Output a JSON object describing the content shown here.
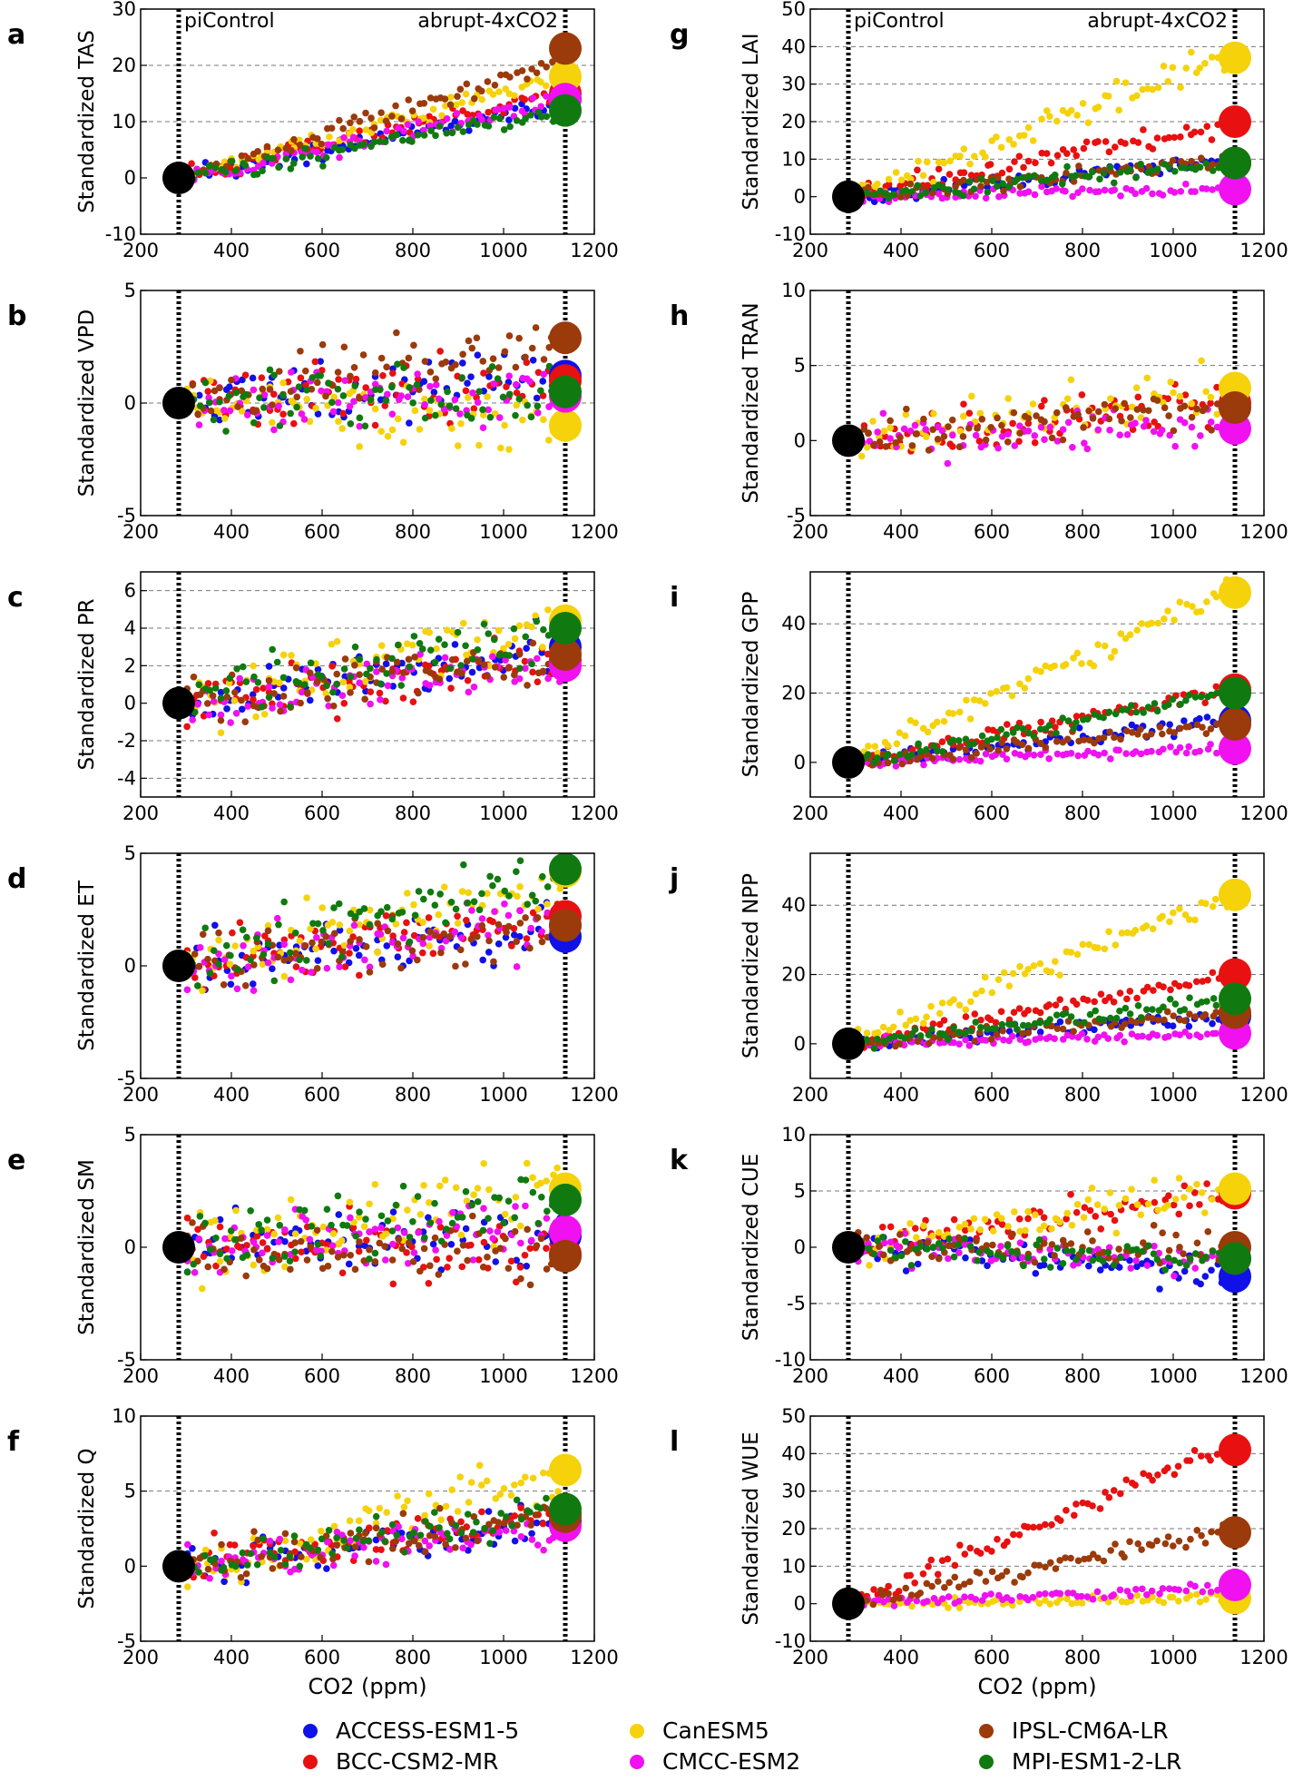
{
  "figure": {
    "xlabel": "CO2 (ppm)",
    "annotation_left": "piControl",
    "annotation_right": "abrupt-4xCO2",
    "colors": {
      "ACCESS-ESM1-5": "#1010e8",
      "BCC-CSM2-MR": "#e81010",
      "CanESM5": "#f5d20a",
      "CMCC-ESM2": "#f010f0",
      "IPSL-CM6A-LR": "#9b3a0a",
      "MPI-ESM1-2-LR": "#107a10",
      "piControl": "#000000"
    }
  },
  "legend": {
    "items": [
      {
        "name": "ACCESS-ESM1-5",
        "color": "#1010e8"
      },
      {
        "name": "CanESM5",
        "color": "#f5d20a"
      },
      {
        "name": "IPSL-CM6A-LR",
        "color": "#9b3a0a"
      },
      {
        "name": "BCC-CSM2-MR",
        "color": "#e81010"
      },
      {
        "name": "CMCC-ESM2",
        "color": "#f010f0"
      },
      {
        "name": "MPI-ESM1-2-LR",
        "color": "#107a10"
      }
    ]
  },
  "chart_data": [
    {
      "panel": "a",
      "type": "scatter",
      "ylabel": "Standardized TAS",
      "xlim": [
        200,
        1200
      ],
      "ylim": [
        -10,
        30
      ],
      "yticks": [
        -10,
        0,
        10,
        20,
        30
      ],
      "xticks": [
        200,
        400,
        600,
        800,
        1000,
        1200
      ],
      "grid_y": [
        10,
        20
      ],
      "endpoints_at_284": [
        {
          "model": "piControl",
          "value": 0
        }
      ],
      "series": [
        {
          "name": "ACCESS-ESM1-5",
          "trend_end": 13,
          "noise": 1.2,
          "end_value": 14
        },
        {
          "name": "BCC-CSM2-MR",
          "trend_end": 15,
          "noise": 1.2,
          "end_value": 15
        },
        {
          "name": "CanESM5",
          "trend_end": 18,
          "noise": 1.2,
          "end_value": 18
        },
        {
          "name": "CMCC-ESM2",
          "trend_end": 14,
          "noise": 1.2,
          "end_value": 14
        },
        {
          "name": "IPSL-CM6A-LR",
          "trend_end": 21,
          "noise": 1.2,
          "end_value": 23
        },
        {
          "name": "MPI-ESM1-2-LR",
          "trend_end": 11.5,
          "noise": 1.2,
          "end_value": 12
        }
      ]
    },
    {
      "panel": "b",
      "type": "scatter",
      "ylabel": "Standardized VPD",
      "xlim": [
        200,
        1200
      ],
      "ylim": [
        -5,
        5
      ],
      "yticks": [
        -5,
        0,
        5
      ],
      "xticks": [
        200,
        400,
        600,
        800,
        1000,
        1200
      ],
      "grid_y": [
        0
      ],
      "endpoints_at_284": [
        {
          "model": "piControl",
          "value": 0
        }
      ],
      "series": [
        {
          "name": "ACCESS-ESM1-5",
          "trend_end": 1.2,
          "noise": 0.9,
          "end_value": 1.2
        },
        {
          "name": "BCC-CSM2-MR",
          "trend_end": 1.0,
          "noise": 0.9,
          "end_value": 1.0
        },
        {
          "name": "CanESM5",
          "trend_end": -1.0,
          "noise": 1.0,
          "end_value": -1.0
        },
        {
          "name": "CMCC-ESM2",
          "trend_end": 0.3,
          "noise": 0.9,
          "end_value": 0.3
        },
        {
          "name": "IPSL-CM6A-LR",
          "trend_end": 2.9,
          "noise": 1.0,
          "end_value": 2.9
        },
        {
          "name": "MPI-ESM1-2-LR",
          "trend_end": 0.5,
          "noise": 0.9,
          "end_value": 0.5
        }
      ]
    },
    {
      "panel": "c",
      "type": "scatter",
      "ylabel": "Standardized PR",
      "xlim": [
        200,
        1200
      ],
      "ylim": [
        -5,
        7
      ],
      "yticks": [
        -4,
        -2,
        0,
        2,
        4,
        6
      ],
      "xticks": [
        200,
        400,
        600,
        800,
        1000,
        1200
      ],
      "grid_y": [
        -4,
        -2,
        2,
        4,
        6
      ],
      "endpoints_at_284": [
        {
          "model": "piControl",
          "value": 0
        }
      ],
      "series": [
        {
          "name": "ACCESS-ESM1-5",
          "trend_end": 3.0,
          "noise": 1.0,
          "end_value": 3.0
        },
        {
          "name": "BCC-CSM2-MR",
          "trend_end": 2.3,
          "noise": 1.0,
          "end_value": 2.3
        },
        {
          "name": "CanESM5",
          "trend_end": 4.5,
          "noise": 1.1,
          "end_value": 4.4
        },
        {
          "name": "CMCC-ESM2",
          "trend_end": 2.0,
          "noise": 1.0,
          "end_value": 2.0
        },
        {
          "name": "IPSL-CM6A-LR",
          "trend_end": 2.6,
          "noise": 1.0,
          "end_value": 2.6
        },
        {
          "name": "MPI-ESM1-2-LR",
          "trend_end": 4.0,
          "noise": 1.0,
          "end_value": 4.0
        }
      ]
    },
    {
      "panel": "d",
      "type": "scatter",
      "ylabel": "Standardized ET",
      "xlim": [
        200,
        1200
      ],
      "ylim": [
        -5,
        5
      ],
      "yticks": [
        -5,
        0,
        5
      ],
      "xticks": [
        200,
        400,
        600,
        800,
        1000,
        1200
      ],
      "grid_y": [],
      "endpoints_at_284": [
        {
          "model": "piControl",
          "value": 0
        }
      ],
      "series": [
        {
          "name": "ACCESS-ESM1-5",
          "trend_end": 1.5,
          "noise": 0.9,
          "end_value": 1.3
        },
        {
          "name": "BCC-CSM2-MR",
          "trend_end": 2.0,
          "noise": 0.9,
          "end_value": 2.2
        },
        {
          "name": "CanESM5",
          "trend_end": 3.8,
          "noise": 1.0,
          "end_value": 4.2
        },
        {
          "name": "CMCC-ESM2",
          "trend_end": 1.8,
          "noise": 0.9,
          "end_value": 1.8
        },
        {
          "name": "IPSL-CM6A-LR",
          "trend_end": 1.8,
          "noise": 0.9,
          "end_value": 1.8
        },
        {
          "name": "MPI-ESM1-2-LR",
          "trend_end": 4.0,
          "noise": 1.0,
          "end_value": 4.3
        }
      ]
    },
    {
      "panel": "e",
      "type": "scatter",
      "ylabel": "Standardized SM",
      "xlim": [
        200,
        1200
      ],
      "ylim": [
        -5,
        5
      ],
      "yticks": [
        -5,
        0,
        5
      ],
      "xticks": [
        200,
        400,
        600,
        800,
        1000,
        1200
      ],
      "grid_y": [],
      "endpoints_at_284": [
        {
          "model": "piControl",
          "value": 0
        }
      ],
      "series": [
        {
          "name": "ACCESS-ESM1-5",
          "trend_end": 0.5,
          "noise": 0.9,
          "end_value": 0.5
        },
        {
          "name": "BCC-CSM2-MR",
          "trend_end": -0.3,
          "noise": 1.0,
          "end_value": -0.3
        },
        {
          "name": "CanESM5",
          "trend_end": 2.6,
          "noise": 1.1,
          "end_value": 2.6
        },
        {
          "name": "CMCC-ESM2",
          "trend_end": 0.7,
          "noise": 1.0,
          "end_value": 0.7
        },
        {
          "name": "IPSL-CM6A-LR",
          "trend_end": -0.4,
          "noise": 1.0,
          "end_value": -0.4
        },
        {
          "name": "MPI-ESM1-2-LR",
          "trend_end": 2.1,
          "noise": 1.0,
          "end_value": 2.1
        }
      ]
    },
    {
      "panel": "f",
      "type": "scatter",
      "ylabel": "Standardized Q",
      "xlim": [
        200,
        1200
      ],
      "ylim": [
        -5,
        10
      ],
      "yticks": [
        -5,
        0,
        5,
        10
      ],
      "xticks": [
        200,
        400,
        600,
        800,
        1000,
        1200
      ],
      "grid_y": [
        5
      ],
      "endpoints_at_284": [
        {
          "model": "piControl",
          "value": 0
        }
      ],
      "series": [
        {
          "name": "ACCESS-ESM1-5",
          "trend_end": 3.0,
          "noise": 1.0,
          "end_value": 3.0
        },
        {
          "name": "BCC-CSM2-MR",
          "trend_end": 3.5,
          "noise": 1.0,
          "end_value": 3.5
        },
        {
          "name": "CanESM5",
          "trend_end": 6.0,
          "noise": 1.3,
          "end_value": 6.4
        },
        {
          "name": "CMCC-ESM2",
          "trend_end": 2.7,
          "noise": 1.0,
          "end_value": 2.7
        },
        {
          "name": "IPSL-CM6A-LR",
          "trend_end": 3.3,
          "noise": 1.0,
          "end_value": 3.3
        },
        {
          "name": "MPI-ESM1-2-LR",
          "trend_end": 3.8,
          "noise": 1.0,
          "end_value": 3.8
        }
      ]
    },
    {
      "panel": "g",
      "type": "scatter",
      "ylabel": "Standardized LAI",
      "xlim": [
        200,
        1200
      ],
      "ylim": [
        -10,
        50
      ],
      "yticks": [
        -10,
        0,
        10,
        20,
        30,
        40,
        50
      ],
      "xticks": [
        200,
        400,
        600,
        800,
        1000,
        1200
      ],
      "grid_y": [
        10,
        20,
        30,
        40
      ],
      "endpoints_at_284": [
        {
          "model": "piControl",
          "value": 0
        }
      ],
      "series": [
        {
          "name": "ACCESS-ESM1-5",
          "trend_end": 10,
          "noise": 1.5,
          "end_value": 9
        },
        {
          "name": "BCC-CSM2-MR",
          "trend_end": 20,
          "noise": 2.0,
          "end_value": 20
        },
        {
          "name": "CanESM5",
          "trend_end": 38,
          "noise": 3.0,
          "end_value": 37
        },
        {
          "name": "CMCC-ESM2",
          "trend_end": 2,
          "noise": 1.0,
          "end_value": 2
        },
        {
          "name": "IPSL-CM6A-LR",
          "trend_end": 10,
          "noise": 1.5,
          "end_value": 9
        },
        {
          "name": "MPI-ESM1-2-LR",
          "trend_end": 9,
          "noise": 1.5,
          "end_value": 9
        }
      ]
    },
    {
      "panel": "h",
      "type": "scatter",
      "ylabel": "Standardized TRAN",
      "xlim": [
        200,
        1200
      ],
      "ylim": [
        -5,
        10
      ],
      "yticks": [
        -5,
        0,
        5,
        10
      ],
      "xticks": [
        200,
        400,
        600,
        800,
        1000,
        1200
      ],
      "grid_y": [
        5
      ],
      "endpoints_at_284": [
        {
          "model": "piControl",
          "value": 0
        }
      ],
      "series": [
        {
          "name": "BCC-CSM2-MR",
          "trend_end": 2.5,
          "noise": 1.0,
          "end_value": 2.5
        },
        {
          "name": "CanESM5",
          "trend_end": 3.5,
          "noise": 1.1,
          "end_value": 3.5
        },
        {
          "name": "CMCC-ESM2",
          "trend_end": 0.8,
          "noise": 0.9,
          "end_value": 0.8
        },
        {
          "name": "IPSL-CM6A-LR",
          "trend_end": 2.2,
          "noise": 1.0,
          "end_value": 2.2
        }
      ]
    },
    {
      "panel": "i",
      "type": "scatter",
      "ylabel": "Standardized GPP",
      "xlim": [
        200,
        1200
      ],
      "ylim": [
        -10,
        55
      ],
      "yticks": [
        0,
        20,
        40
      ],
      "xticks": [
        200,
        400,
        600,
        800,
        1000,
        1200
      ],
      "grid_y": [
        20,
        40
      ],
      "endpoints_at_284": [
        {
          "model": "piControl",
          "value": 0
        }
      ],
      "series": [
        {
          "name": "ACCESS-ESM1-5",
          "trend_end": 12,
          "noise": 1.5,
          "end_value": 12
        },
        {
          "name": "BCC-CSM2-MR",
          "trend_end": 21,
          "noise": 1.5,
          "end_value": 21
        },
        {
          "name": "CanESM5",
          "trend_end": 50,
          "noise": 2.5,
          "end_value": 49
        },
        {
          "name": "CMCC-ESM2",
          "trend_end": 4,
          "noise": 1.0,
          "end_value": 4
        },
        {
          "name": "IPSL-CM6A-LR",
          "trend_end": 11,
          "noise": 1.5,
          "end_value": 11
        },
        {
          "name": "MPI-ESM1-2-LR",
          "trend_end": 20,
          "noise": 1.5,
          "end_value": 20
        }
      ]
    },
    {
      "panel": "j",
      "type": "scatter",
      "ylabel": "Standardized NPP",
      "xlim": [
        200,
        1200
      ],
      "ylim": [
        -10,
        55
      ],
      "yticks": [
        0,
        20,
        40
      ],
      "xticks": [
        200,
        400,
        600,
        800,
        1000,
        1200
      ],
      "grid_y": [
        20,
        40
      ],
      "endpoints_at_284": [
        {
          "model": "piControl",
          "value": 0
        }
      ],
      "series": [
        {
          "name": "ACCESS-ESM1-5",
          "trend_end": 8,
          "noise": 1.5,
          "end_value": 8
        },
        {
          "name": "BCC-CSM2-MR",
          "trend_end": 20,
          "noise": 1.5,
          "end_value": 20
        },
        {
          "name": "CanESM5",
          "trend_end": 44,
          "noise": 2.5,
          "end_value": 43
        },
        {
          "name": "CMCC-ESM2",
          "trend_end": 3,
          "noise": 1.0,
          "end_value": 3
        },
        {
          "name": "IPSL-CM6A-LR",
          "trend_end": 9,
          "noise": 1.5,
          "end_value": 9
        },
        {
          "name": "MPI-ESM1-2-LR",
          "trend_end": 13,
          "noise": 1.5,
          "end_value": 13
        }
      ]
    },
    {
      "panel": "k",
      "type": "scatter",
      "ylabel": "Standardized CUE",
      "xlim": [
        200,
        1200
      ],
      "ylim": [
        -10,
        10
      ],
      "yticks": [
        -10,
        -5,
        0,
        5,
        10
      ],
      "xticks": [
        200,
        400,
        600,
        800,
        1000,
        1200
      ],
      "grid_y": [
        -5,
        5
      ],
      "endpoints_at_284": [
        {
          "model": "piControl",
          "value": 0
        }
      ],
      "series": [
        {
          "name": "ACCESS-ESM1-5",
          "trend_end": -2.5,
          "noise": 1.0,
          "end_value": -2.6
        },
        {
          "name": "BCC-CSM2-MR",
          "trend_end": 4.8,
          "noise": 1.0,
          "end_value": 4.8
        },
        {
          "name": "CanESM5",
          "trend_end": 5.5,
          "noise": 1.3,
          "end_value": 5.2
        },
        {
          "name": "CMCC-ESM2",
          "trend_end": -1.0,
          "noise": 1.0,
          "end_value": -1.0
        },
        {
          "name": "IPSL-CM6A-LR",
          "trend_end": 0.0,
          "noise": 1.0,
          "end_value": 0.0
        },
        {
          "name": "MPI-ESM1-2-LR",
          "trend_end": -1.0,
          "noise": 1.0,
          "end_value": -1.0
        }
      ]
    },
    {
      "panel": "l",
      "type": "scatter",
      "ylabel": "Standardized WUE",
      "xlim": [
        200,
        1200
      ],
      "ylim": [
        -10,
        50
      ],
      "yticks": [
        -10,
        0,
        10,
        20,
        30,
        40,
        50
      ],
      "xticks": [
        200,
        400,
        600,
        800,
        1000,
        1200
      ],
      "grid_y": [
        10,
        20,
        30,
        40
      ],
      "endpoints_at_284": [
        {
          "model": "piControl",
          "value": 0
        }
      ],
      "series": [
        {
          "name": "BCC-CSM2-MR",
          "trend_end": 43,
          "noise": 2.0,
          "end_value": 41
        },
        {
          "name": "CanESM5",
          "trend_end": 1.5,
          "noise": 1.0,
          "end_value": 1.5
        },
        {
          "name": "CMCC-ESM2",
          "trend_end": 4,
          "noise": 1.0,
          "end_value": 5
        },
        {
          "name": "IPSL-CM6A-LR",
          "trend_end": 20,
          "noise": 1.5,
          "end_value": 19
        }
      ]
    }
  ]
}
